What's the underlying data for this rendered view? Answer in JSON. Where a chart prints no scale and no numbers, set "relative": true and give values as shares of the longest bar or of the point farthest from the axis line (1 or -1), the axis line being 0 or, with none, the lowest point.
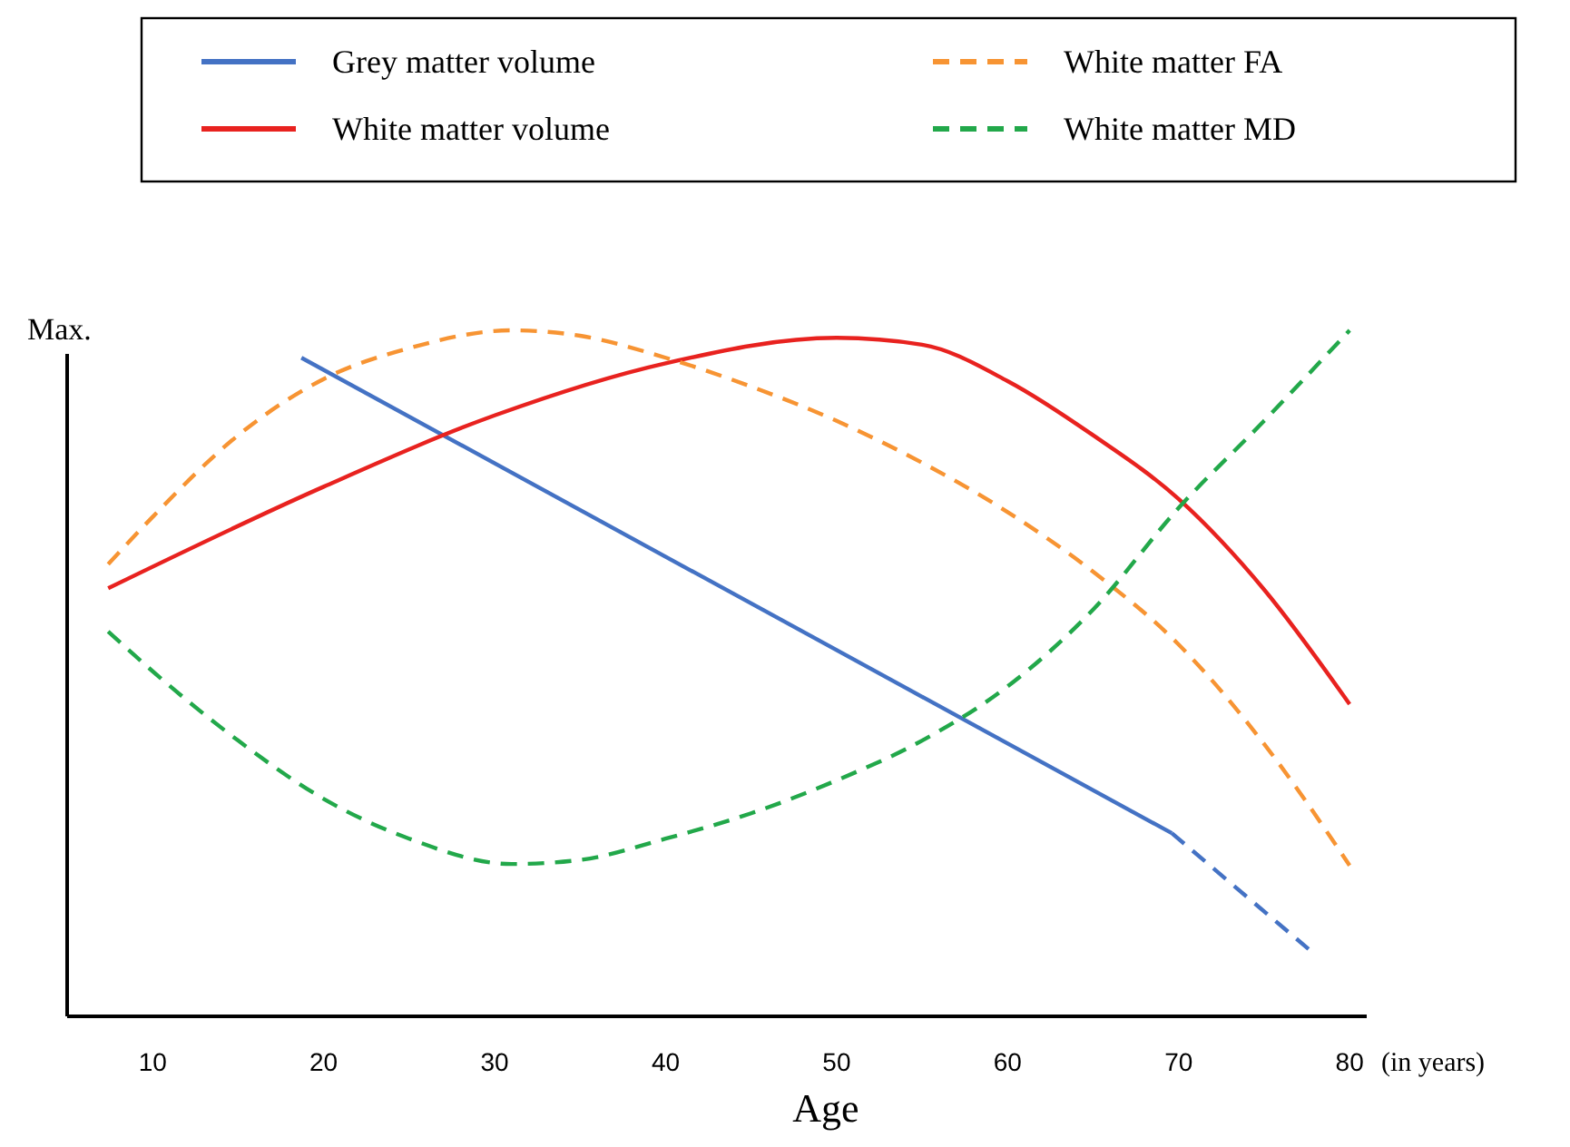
{
  "chart_data": {
    "type": "line",
    "relative": true,
    "ylabel": "Max.",
    "xlabel": "Age",
    "annotations": [
      "(in years)"
    ],
    "xlim": [
      5,
      81
    ],
    "xticks": [
      10,
      20,
      30,
      40,
      50,
      60,
      70,
      80
    ],
    "legend": "top",
    "series": [
      {
        "name": "Grey matter volume",
        "color": "#4472c4",
        "line_style": "solid",
        "x": [
          18.7,
          69.6
        ],
        "values": [
          0.96,
          0.267
        ]
      },
      {
        "color": "#4472c4",
        "line_style": "dashed",
        "x": [
          69.6,
          77.6
        ],
        "values": [
          0.267,
          0.098
        ]
      },
      {
        "name": "White matter volume",
        "color": "#e8221f",
        "line_style": "solid",
        "x": [
          7.4,
          20,
          30,
          40,
          50,
          55,
          60,
          65,
          70,
          75,
          80
        ],
        "values": [
          0.624,
          0.772,
          0.876,
          0.952,
          0.989,
          0.979,
          0.926,
          0.847,
          0.754,
          0.622,
          0.455
        ]
      },
      {
        "name": "White matter FA",
        "color": "#f79433",
        "line_style": "dashed",
        "x": [
          7.4,
          10,
          15,
          20,
          25,
          31,
          35,
          40,
          45,
          50,
          55,
          60,
          65,
          70,
          75,
          80
        ],
        "values": [
          0.659,
          0.728,
          0.847,
          0.929,
          0.974,
          1.0,
          0.992,
          0.96,
          0.918,
          0.868,
          0.807,
          0.735,
          0.648,
          0.542,
          0.397,
          0.22
        ]
      },
      {
        "name": "White matter MD",
        "color": "#22a84a",
        "line_style": "dashed",
        "x": [
          7.4,
          10,
          15,
          20,
          25,
          31,
          35,
          40,
          45,
          50,
          55,
          60,
          65,
          70,
          75,
          80
        ],
        "values": [
          0.561,
          0.503,
          0.402,
          0.317,
          0.259,
          0.222,
          0.228,
          0.259,
          0.296,
          0.344,
          0.402,
          0.481,
          0.593,
          0.741,
          0.868,
          1.0
        ]
      }
    ]
  }
}
